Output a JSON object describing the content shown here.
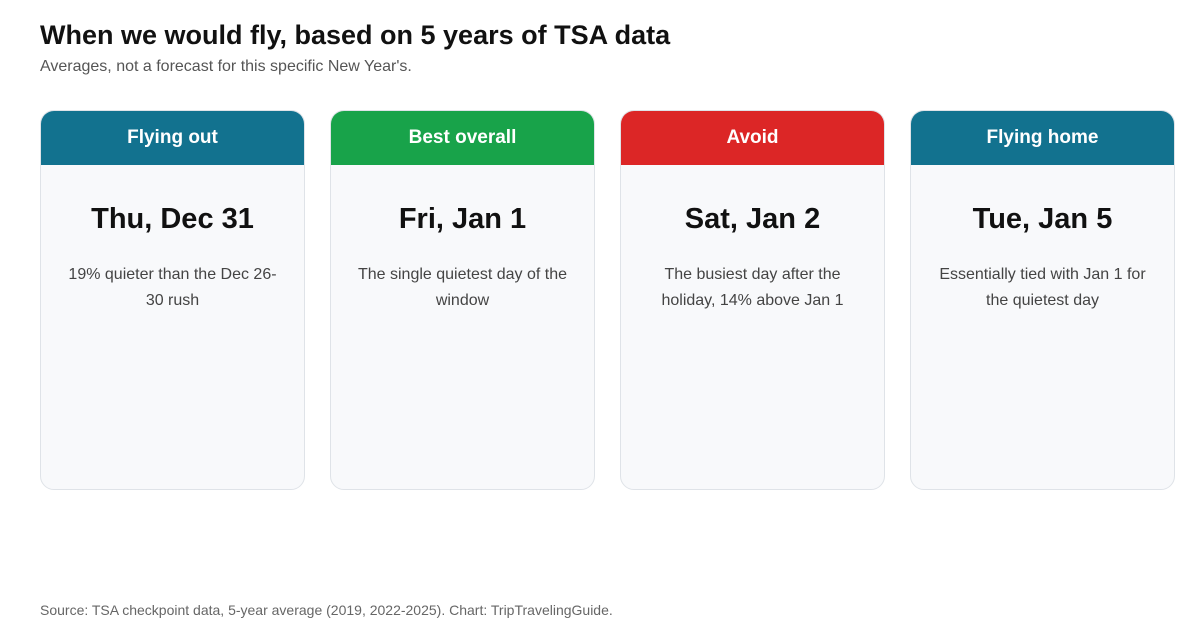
{
  "title": "When we would fly, based on 5 years of TSA data",
  "subtitle": "Averages, not a forecast for this specific New Year's.",
  "cards": [
    {
      "label": "Flying out",
      "color": "#12728f",
      "date": "Thu, Dec 31",
      "description": "19% quieter than the Dec 26-30 rush"
    },
    {
      "label": "Best overall",
      "color": "#18a34a",
      "date": "Fri, Jan 1",
      "description": "The single quietest day of the window"
    },
    {
      "label": "Avoid",
      "color": "#dc2626",
      "date": "Sat, Jan 2",
      "description": "The busiest day after the holiday, 14% above Jan 1"
    },
    {
      "label": "Flying home",
      "color": "#12728f",
      "date": "Tue, Jan 5",
      "description": "Essentially tied with Jan 1 for the quietest day"
    }
  ],
  "source": "Source: TSA checkpoint data, 5-year average (2019, 2022-2025). Chart: TripTravelingGuide."
}
